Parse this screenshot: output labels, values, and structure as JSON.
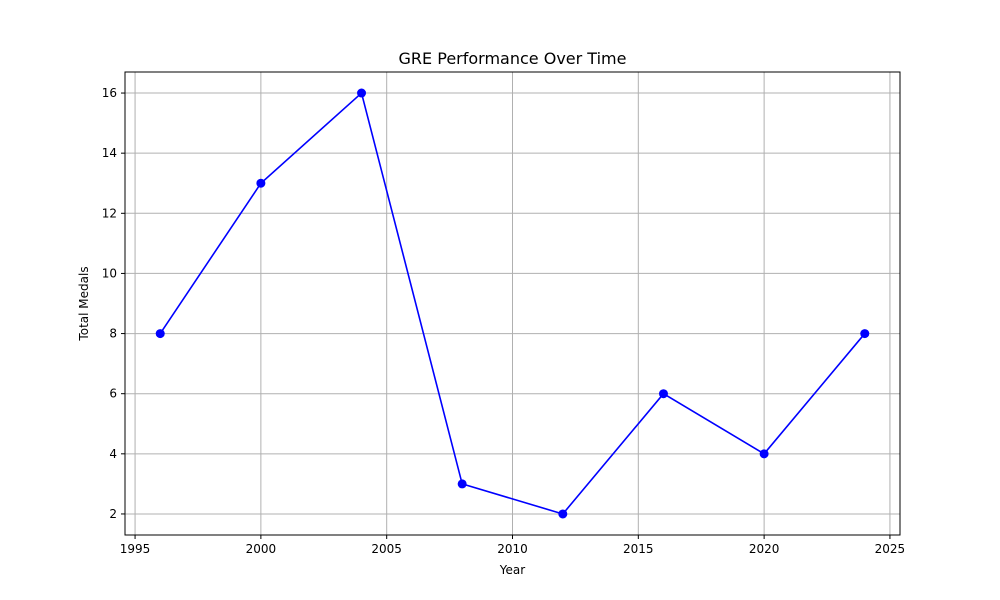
{
  "chart_data": {
    "type": "line",
    "title": "GRE Performance Over Time",
    "xlabel": "Year",
    "ylabel": "Total Medals",
    "x": [
      1996,
      2000,
      2004,
      2008,
      2012,
      2016,
      2020,
      2024
    ],
    "series": [
      {
        "values": [
          8,
          13,
          16,
          3,
          2,
          6,
          4,
          8
        ],
        "color": "#0000ff",
        "marker": "circle"
      }
    ],
    "xlim": [
      1994.6,
      2025.4
    ],
    "ylim": [
      1.3,
      16.7
    ],
    "xticks": [
      1995,
      2000,
      2005,
      2010,
      2015,
      2020,
      2025
    ],
    "yticks": [
      2,
      4,
      6,
      8,
      10,
      12,
      14,
      16
    ],
    "grid": true,
    "legend": "none"
  }
}
